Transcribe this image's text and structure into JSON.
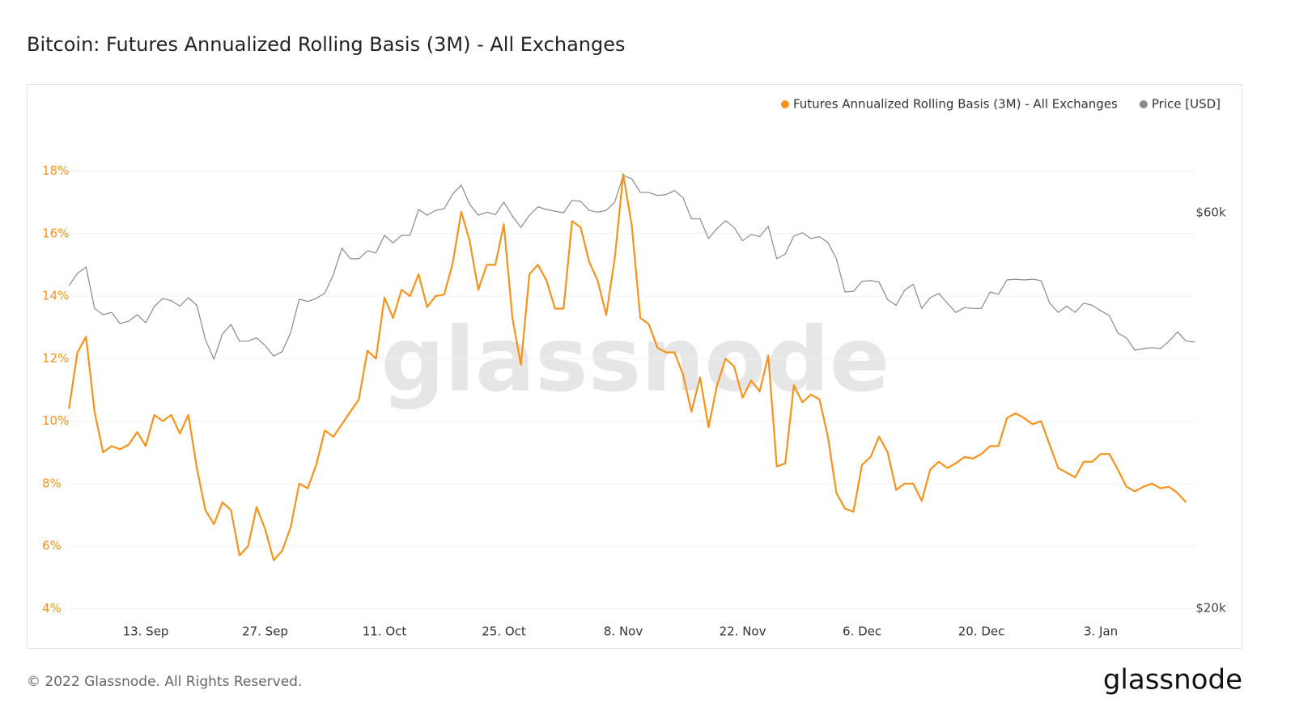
{
  "chart_data": {
    "type": "line",
    "title": "Bitcoin: Futures Annualized Rolling Basis (3M) - All Exchanges",
    "watermark": "glassnode",
    "footer": "© 2022 Glassnode. All Rights Reserved.",
    "logo": "glassnode",
    "legend": "top-right",
    "grid": true,
    "categories": [
      null,
      null,
      null,
      null,
      null,
      null,
      null,
      null,
      null,
      "13. Sep",
      null,
      null,
      null,
      null,
      null,
      null,
      null,
      null,
      null,
      null,
      null,
      null,
      null,
      "27. Sep",
      null,
      null,
      null,
      null,
      null,
      null,
      null,
      null,
      null,
      null,
      null,
      null,
      null,
      "11. Oct",
      null,
      null,
      null,
      null,
      null,
      null,
      null,
      null,
      null,
      null,
      null,
      null,
      null,
      "25. Oct",
      null,
      null,
      null,
      null,
      null,
      null,
      null,
      null,
      null,
      null,
      null,
      null,
      null,
      "8. Nov",
      null,
      null,
      null,
      null,
      null,
      null,
      null,
      null,
      null,
      null,
      null,
      null,
      null,
      "22. Nov",
      null,
      null,
      null,
      null,
      null,
      null,
      null,
      null,
      null,
      null,
      null,
      null,
      null,
      "6. Dec",
      null,
      null,
      null,
      null,
      null,
      null,
      null,
      null,
      null,
      null,
      null,
      null,
      null,
      "20. Dec",
      null,
      null,
      null,
      null,
      null,
      null,
      null,
      null,
      null,
      null,
      null,
      null,
      null,
      "3. Jan",
      null,
      null,
      null,
      null,
      null,
      null,
      null,
      null,
      null,
      null,
      null
    ],
    "ylim": [
      3.7,
      19.8
    ],
    "yticks": [
      {
        "value": 4,
        "label": "4%"
      },
      {
        "value": 6,
        "label": "6%"
      },
      {
        "value": 8,
        "label": "8%"
      },
      {
        "value": 10,
        "label": "10%"
      },
      {
        "value": 12,
        "label": "12%"
      },
      {
        "value": 14,
        "label": "14%"
      },
      {
        "value": 16,
        "label": "16%"
      },
      {
        "value": 18,
        "label": "18%"
      }
    ],
    "y2lim": [
      19470,
      78750
    ],
    "y2log": true,
    "y2ticks": [
      {
        "value": 20000,
        "label": "$20k"
      },
      {
        "value": 60000,
        "label": "$60k"
      }
    ],
    "series": [
      {
        "name": "Futures Annualized Rolling Basis (3M) - All Exchanges",
        "color": "#f7931a",
        "axis": "y",
        "values": [
          10.4,
          12.2,
          12.7,
          10.3,
          9.0,
          9.2,
          9.1,
          9.25,
          9.65,
          9.2,
          10.2,
          10.0,
          10.2,
          9.6,
          10.2,
          8.5,
          7.15,
          6.7,
          7.4,
          7.15,
          5.7,
          6.0,
          7.25,
          6.55,
          5.55,
          5.85,
          6.6,
          8.0,
          7.85,
          8.6,
          9.7,
          9.5,
          9.9,
          10.3,
          10.7,
          12.25,
          12.0,
          13.95,
          13.3,
          14.2,
          14.0,
          14.7,
          13.65,
          14.0,
          14.05,
          15.05,
          16.7,
          15.75,
          14.2,
          15.0,
          15.0,
          16.3,
          13.3,
          11.8,
          14.7,
          15.0,
          14.5,
          13.6,
          13.6,
          16.4,
          16.2,
          15.1,
          14.5,
          13.4,
          15.2,
          17.9,
          16.25,
          13.3,
          13.1,
          12.35,
          12.2,
          12.2,
          11.5,
          10.3,
          11.4,
          9.8,
          11.15,
          12.0,
          11.75,
          10.75,
          11.3,
          10.95,
          12.1,
          8.55,
          8.65,
          11.15,
          10.6,
          10.85,
          10.7,
          9.5,
          7.7,
          7.2,
          7.1,
          8.6,
          8.85,
          9.5,
          9.0,
          7.8,
          8.0,
          8.0,
          7.45,
          8.45,
          8.7,
          8.5,
          8.65,
          8.85,
          8.8,
          8.95,
          9.2,
          9.2,
          10.1,
          10.25,
          10.1,
          9.9,
          10.0,
          9.25,
          8.5,
          8.35,
          8.2,
          8.7,
          8.7,
          8.95,
          8.95,
          8.45,
          7.9,
          7.75,
          7.9,
          8.0,
          7.85,
          7.9,
          7.7,
          7.4,
          null
        ]
      },
      {
        "name": "Price [USD]",
        "color": "#8a8a8a",
        "axis": "y2",
        "values": [
          49000,
          50700,
          51600,
          46000,
          45200,
          45500,
          44100,
          44400,
          45200,
          44200,
          46250,
          47300,
          47000,
          46300,
          47400,
          46400,
          42200,
          39950,
          42850,
          44000,
          42000,
          42000,
          42400,
          41500,
          40300,
          40800,
          43000,
          47200,
          46900,
          47300,
          48000,
          50500,
          54400,
          52800,
          52800,
          54000,
          53650,
          56350,
          55200,
          56350,
          56350,
          60550,
          59600,
          60400,
          60700,
          63200,
          64800,
          61400,
          59600,
          60100,
          59700,
          61800,
          59450,
          57600,
          59600,
          61000,
          60550,
          60250,
          60000,
          62100,
          61950,
          60400,
          60100,
          60400,
          61800,
          66550,
          65950,
          63500,
          63500,
          62950,
          63100,
          63800,
          62600,
          59000,
          59000,
          55850,
          57450,
          58700,
          57600,
          55500,
          56500,
          56150,
          57800,
          52800,
          53500,
          56250,
          56750,
          55850,
          56150,
          55250,
          52800,
          48150,
          48250,
          49600,
          49700,
          49500,
          47150,
          46400,
          48400,
          49200,
          46000,
          47400,
          47950,
          46700,
          45500,
          46100,
          46000,
          46000,
          48150,
          47850,
          49800,
          49900,
          49800,
          49900,
          49700,
          46700,
          45500,
          46300,
          45500,
          46700,
          46400,
          45700,
          45100,
          42950,
          42400,
          40960,
          41150,
          41250,
          41150,
          42000,
          43100,
          42000,
          41900
        ]
      }
    ]
  }
}
